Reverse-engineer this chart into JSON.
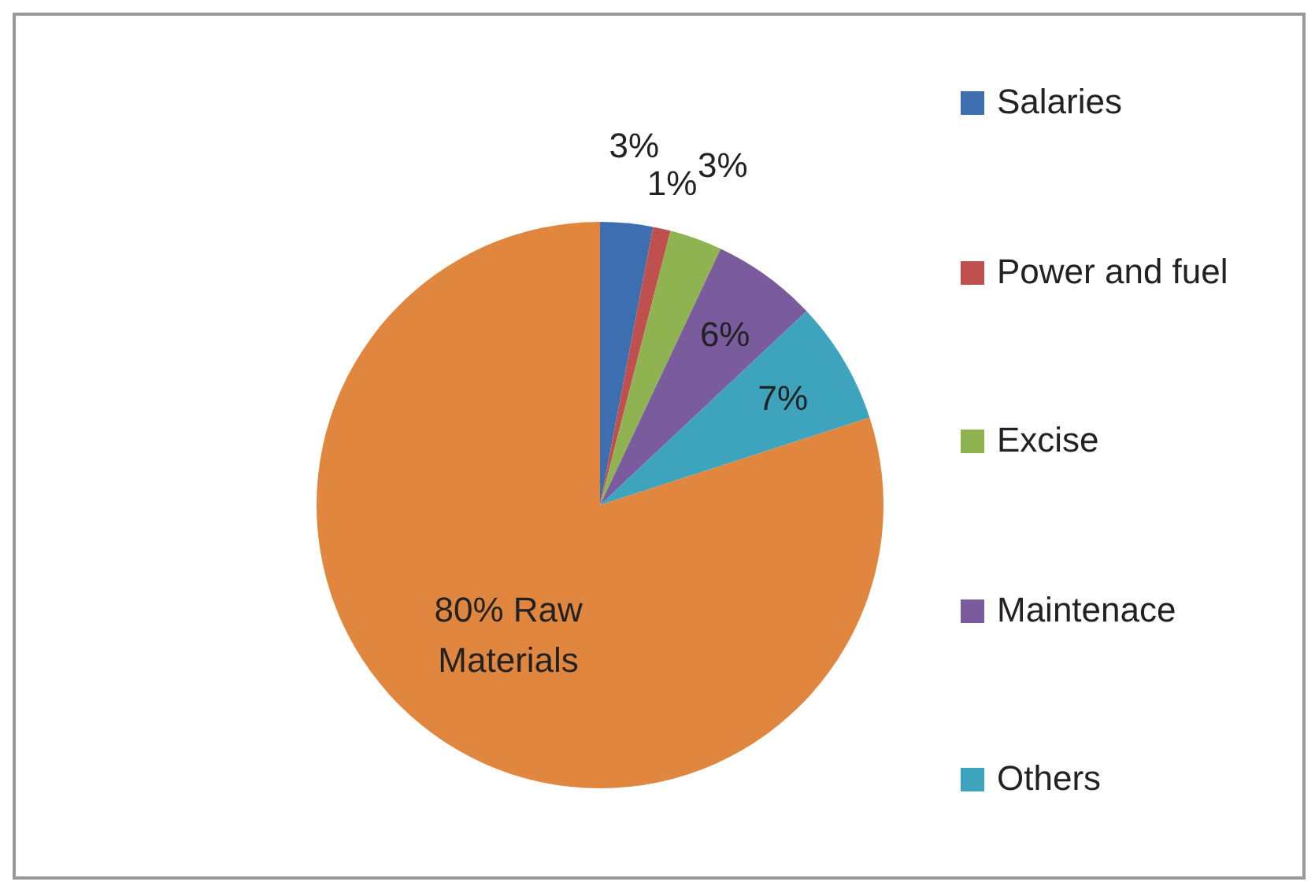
{
  "chart_data": {
    "type": "pie",
    "categories": [
      "Salaries",
      "Power and fuel",
      "Excise",
      "Maintenace",
      "Others",
      null
    ],
    "values": [
      3,
      1,
      3,
      6,
      7,
      80
    ],
    "colors": [
      "#3d6fb0",
      "#c0504d",
      "#8fb350",
      "#7a5c9e",
      "#3ea3bd",
      "#e0863e"
    ],
    "value_labels": [
      "3%",
      "1%",
      "3%",
      "6%",
      "7%",
      "80% Raw Materials"
    ],
    "legend": "right"
  }
}
